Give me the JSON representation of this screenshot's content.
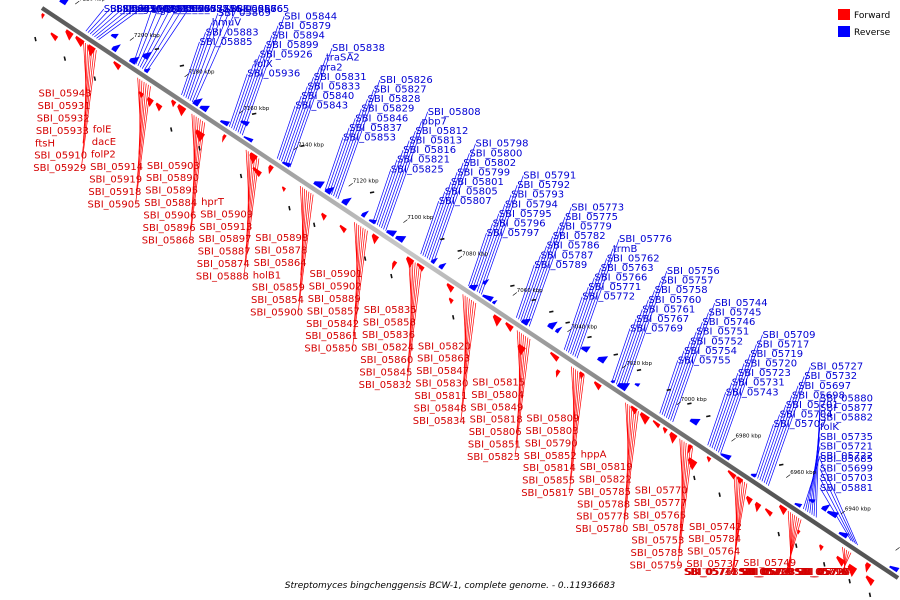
{
  "title": "Streptomyces bingchenggensis BCW-1, complete genome. - 0..11936683",
  "legend": {
    "forward": "Forward",
    "reverse": "Reverse"
  },
  "colors": {
    "forward": "#ff0000",
    "reverse": "#0000ff",
    "backbone": "#808080"
  },
  "chart_data": {
    "type": "linear-genome-map",
    "x_unit": "kbp",
    "x_range": [
      6915,
      7228
    ],
    "ticks": [
      7220,
      7200,
      7180,
      7160,
      7140,
      7120,
      7100,
      7080,
      7060,
      7040,
      7020,
      7000,
      6980,
      6960,
      6940,
      6920
    ],
    "reverse_genes": [
      "SBI_05912",
      "SBI_05911",
      "SBI_05908",
      "SBI_05904",
      "ppa",
      "sig36",
      "SBI_05892",
      "sig35",
      "SBI_05876",
      "SBI_05875",
      "SBI_05873",
      "SBI_05872",
      "SBI_05871",
      "SBI_05886",
      "SBI_05885",
      "SBI_05883",
      "hmuV",
      "SBI_05869",
      "SBI_05867",
      "SBI_05866",
      "SBI_05865",
      "SBI_05936",
      "folX",
      "SBI_05926",
      "SBI_05899",
      "SBI_05894",
      "SBI_05879",
      "SBI_05844",
      "SBI_05843",
      "SBI_05840",
      "SBI_05833",
      "SBI_05831",
      "pra2",
      "traSA2",
      "SBI_05838",
      "SBI_05853",
      "SBI_05837",
      "SBI_05846",
      "SBI_05829",
      "SBI_05828",
      "SBI_05827",
      "SBI_05826",
      "SBI_05825",
      "SBI_05821",
      "SBI_05816",
      "SBI_05813",
      "SBI_05812",
      "pbp7",
      "SBI_05808",
      "SBI_05807",
      "SBI_05805",
      "SBI_05801",
      "SBI_05799",
      "SBI_05802",
      "SBI_05800",
      "SBI_05798",
      "SBI_05797",
      "SBI_05796",
      "SBI_05795",
      "SBI_05794",
      "SBI_05793",
      "SBI_05792",
      "SBI_05791",
      "SBI_05789",
      "SBI_05787",
      "SBI_05786",
      "SBI_05782",
      "SBI_05779",
      "SBI_05775",
      "SBI_05773",
      "SBI_05772",
      "SBI_05771",
      "SBI_05766",
      "SBI_05763",
      "SBI_05762",
      "trmB",
      "SBI_05776",
      "SBI_05769",
      "SBI_05767",
      "SBI_05761",
      "SBI_05760",
      "SBI_05758",
      "SBI_05757",
      "SBI_05756",
      "SBI_05755",
      "SBI_05754",
      "SBI_05752",
      "SBI_05751",
      "SBI_05746",
      "SBI_05745",
      "SBI_05744",
      "SBI_05743",
      "SBI_05731",
      "SBI_05723",
      "SBI_05720",
      "SBI_05719",
      "SBI_05717",
      "SBI_05709",
      "SBI_05707",
      "SBI_05704",
      "SBI_05701",
      "SBI_05698",
      "SBI_05697",
      "SBI_05732",
      "SBI_05727",
      "SBI_05722",
      "SBI_05721",
      "SBI_05735",
      "folK",
      "SBI_05882",
      "SBI_05877",
      "SBI_05880",
      "SBI_05881",
      "SBI_05703",
      "SBI_05699",
      "SBI_05685"
    ],
    "forward_genes": [
      "SBI_05943",
      "SBI_05931",
      "SBI_05932",
      "SBI_05933",
      "ftsH",
      "SBI_05910",
      "SBI_05929",
      "folE",
      "dacE",
      "folP2",
      "SBI_05914",
      "SBI_05919",
      "SBI_05918",
      "SBI_05905",
      "SBI_05903",
      "SBI_05890",
      "SBI_05895",
      "SBI_05884",
      "SBI_05906",
      "SBI_05896",
      "SBI_05868",
      "hprT",
      "SBI_05909",
      "SBI_05913",
      "SBI_05897",
      "SBI_05887",
      "SBI_05874",
      "SBI_05888",
      "SBI_05898",
      "SBI_05878",
      "SBI_05864",
      "holB1",
      "SBI_05859",
      "SBI_05854",
      "SBI_05900",
      "SBI_05901",
      "SBI_05902",
      "SBI_05889",
      "SBI_05857",
      "SBI_05842",
      "SBI_05861",
      "SBI_05850",
      "SBI_05835",
      "SBI_05858",
      "SBI_05836",
      "SBI_05824",
      "SBI_05860",
      "SBI_05845",
      "SBI_05832",
      "SBI_05820",
      "SBI_05863",
      "SBI_05847",
      "SBI_05830",
      "SBI_05811",
      "SBI_05848",
      "SBI_05834",
      "SBI_05815",
      "SBI_05804",
      "SBI_05849",
      "SBI_05818",
      "SBI_05806",
      "SBI_05851",
      "SBI_05823",
      "SBI_05809",
      "SBI_05803",
      "SBI_05790",
      "SBI_05852",
      "SBI_05814",
      "SBI_05855",
      "SBI_05817",
      "hppA",
      "SBI_05819",
      "SBI_05822",
      "SBI_05785",
      "SBI_05788",
      "SBI_05778",
      "SBI_05780",
      "SBI_05770",
      "SBI_05777",
      "SBI_05765",
      "SBI_05781",
      "SBI_05753",
      "SBI_05783",
      "SBI_05759",
      "SBI_05742",
      "SBI_05784",
      "SBI_05764",
      "SBI_05737",
      "SBI_05768",
      "SBI_05741",
      "SBI_05730",
      "SBI_05749",
      "SBI_05733",
      "SBI_05718",
      "SBI_05740",
      "SBI_05729",
      "SBI_05714",
      "SBI_05736",
      "SBI_05724",
      "SBI_05726",
      "SBI_05710",
      "SBI_05690",
      "SBI_05716"
    ]
  }
}
